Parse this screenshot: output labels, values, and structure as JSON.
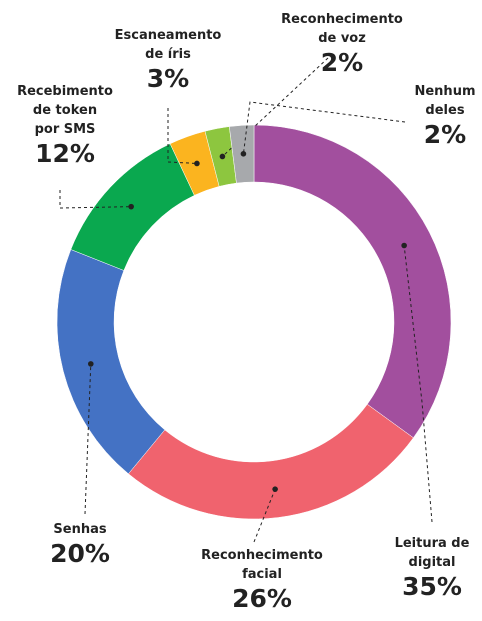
{
  "chart_data": {
    "type": "donut",
    "categories": [
      "Leitura de\ndigital",
      "Reconhecimento\nfacial",
      "Senhas",
      "Recebimento\nde token\npor SMS",
      "Escaneamento\nde íris",
      "Reconhecimento\nde voz",
      "Nenhum\ndeles"
    ],
    "values": [
      35,
      26,
      20,
      12,
      3,
      2,
      2
    ],
    "value_labels": [
      "35%",
      "26%",
      "20%",
      "12%",
      "3%",
      "2%",
      "2%"
    ],
    "colors": [
      "#a24f9e",
      "#f0636e",
      "#4472c4",
      "#0aa84f",
      "#fbb41f",
      "#8dc63f",
      "#a7a9ac"
    ]
  }
}
